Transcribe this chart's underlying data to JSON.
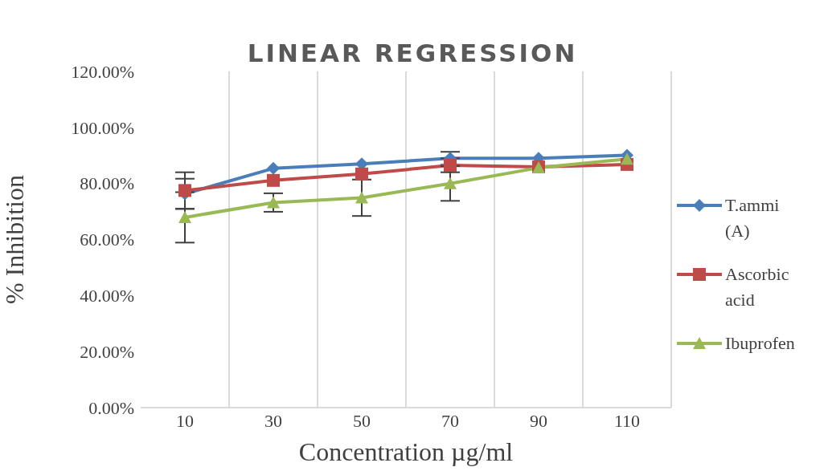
{
  "chart_data": {
    "type": "line",
    "title": "LINEAR REGRESSION",
    "xlabel": "Concentration  µg/ml",
    "ylabel": "% Inhibition",
    "categories": [
      "10",
      "30",
      "50",
      "70",
      "90",
      "110"
    ],
    "series": [
      {
        "name": "T.ammi (A)",
        "color": "#4a7ebb",
        "marker": "diamond",
        "values": [
          76.3,
          85.4,
          87.0,
          89.0,
          89.0,
          90.1
        ],
        "errors": [
          5.4,
          null,
          null,
          2.3,
          null,
          null
        ]
      },
      {
        "name": "Ascorbic acid",
        "color": "#be4b48",
        "marker": "square",
        "values": [
          77.5,
          81.1,
          83.4,
          86.5,
          85.9,
          86.8
        ],
        "errors": [
          6.5,
          null,
          null,
          2.5,
          null,
          null
        ]
      },
      {
        "name": "Ibuprofen",
        "color": "#98b954",
        "marker": "triangle",
        "values": [
          67.9,
          73.2,
          74.9,
          80.0,
          85.6,
          88.7
        ],
        "errors": [
          9,
          3.3,
          6.5,
          6.2,
          null,
          null
        ]
      }
    ],
    "ylim": [
      0,
      120
    ],
    "yticks": [
      {
        "value": 0,
        "label": "0.00%"
      },
      {
        "value": 20,
        "label": "20.00%"
      },
      {
        "value": 40,
        "label": "40.00%"
      },
      {
        "value": 60,
        "label": "60.00%"
      },
      {
        "value": 80,
        "label": "80.00%"
      },
      {
        "value": 100,
        "label": "100.00%"
      },
      {
        "value": 120,
        "label": "120.00%"
      }
    ],
    "grid": "x",
    "legend": "right",
    "line_style": "solid"
  }
}
